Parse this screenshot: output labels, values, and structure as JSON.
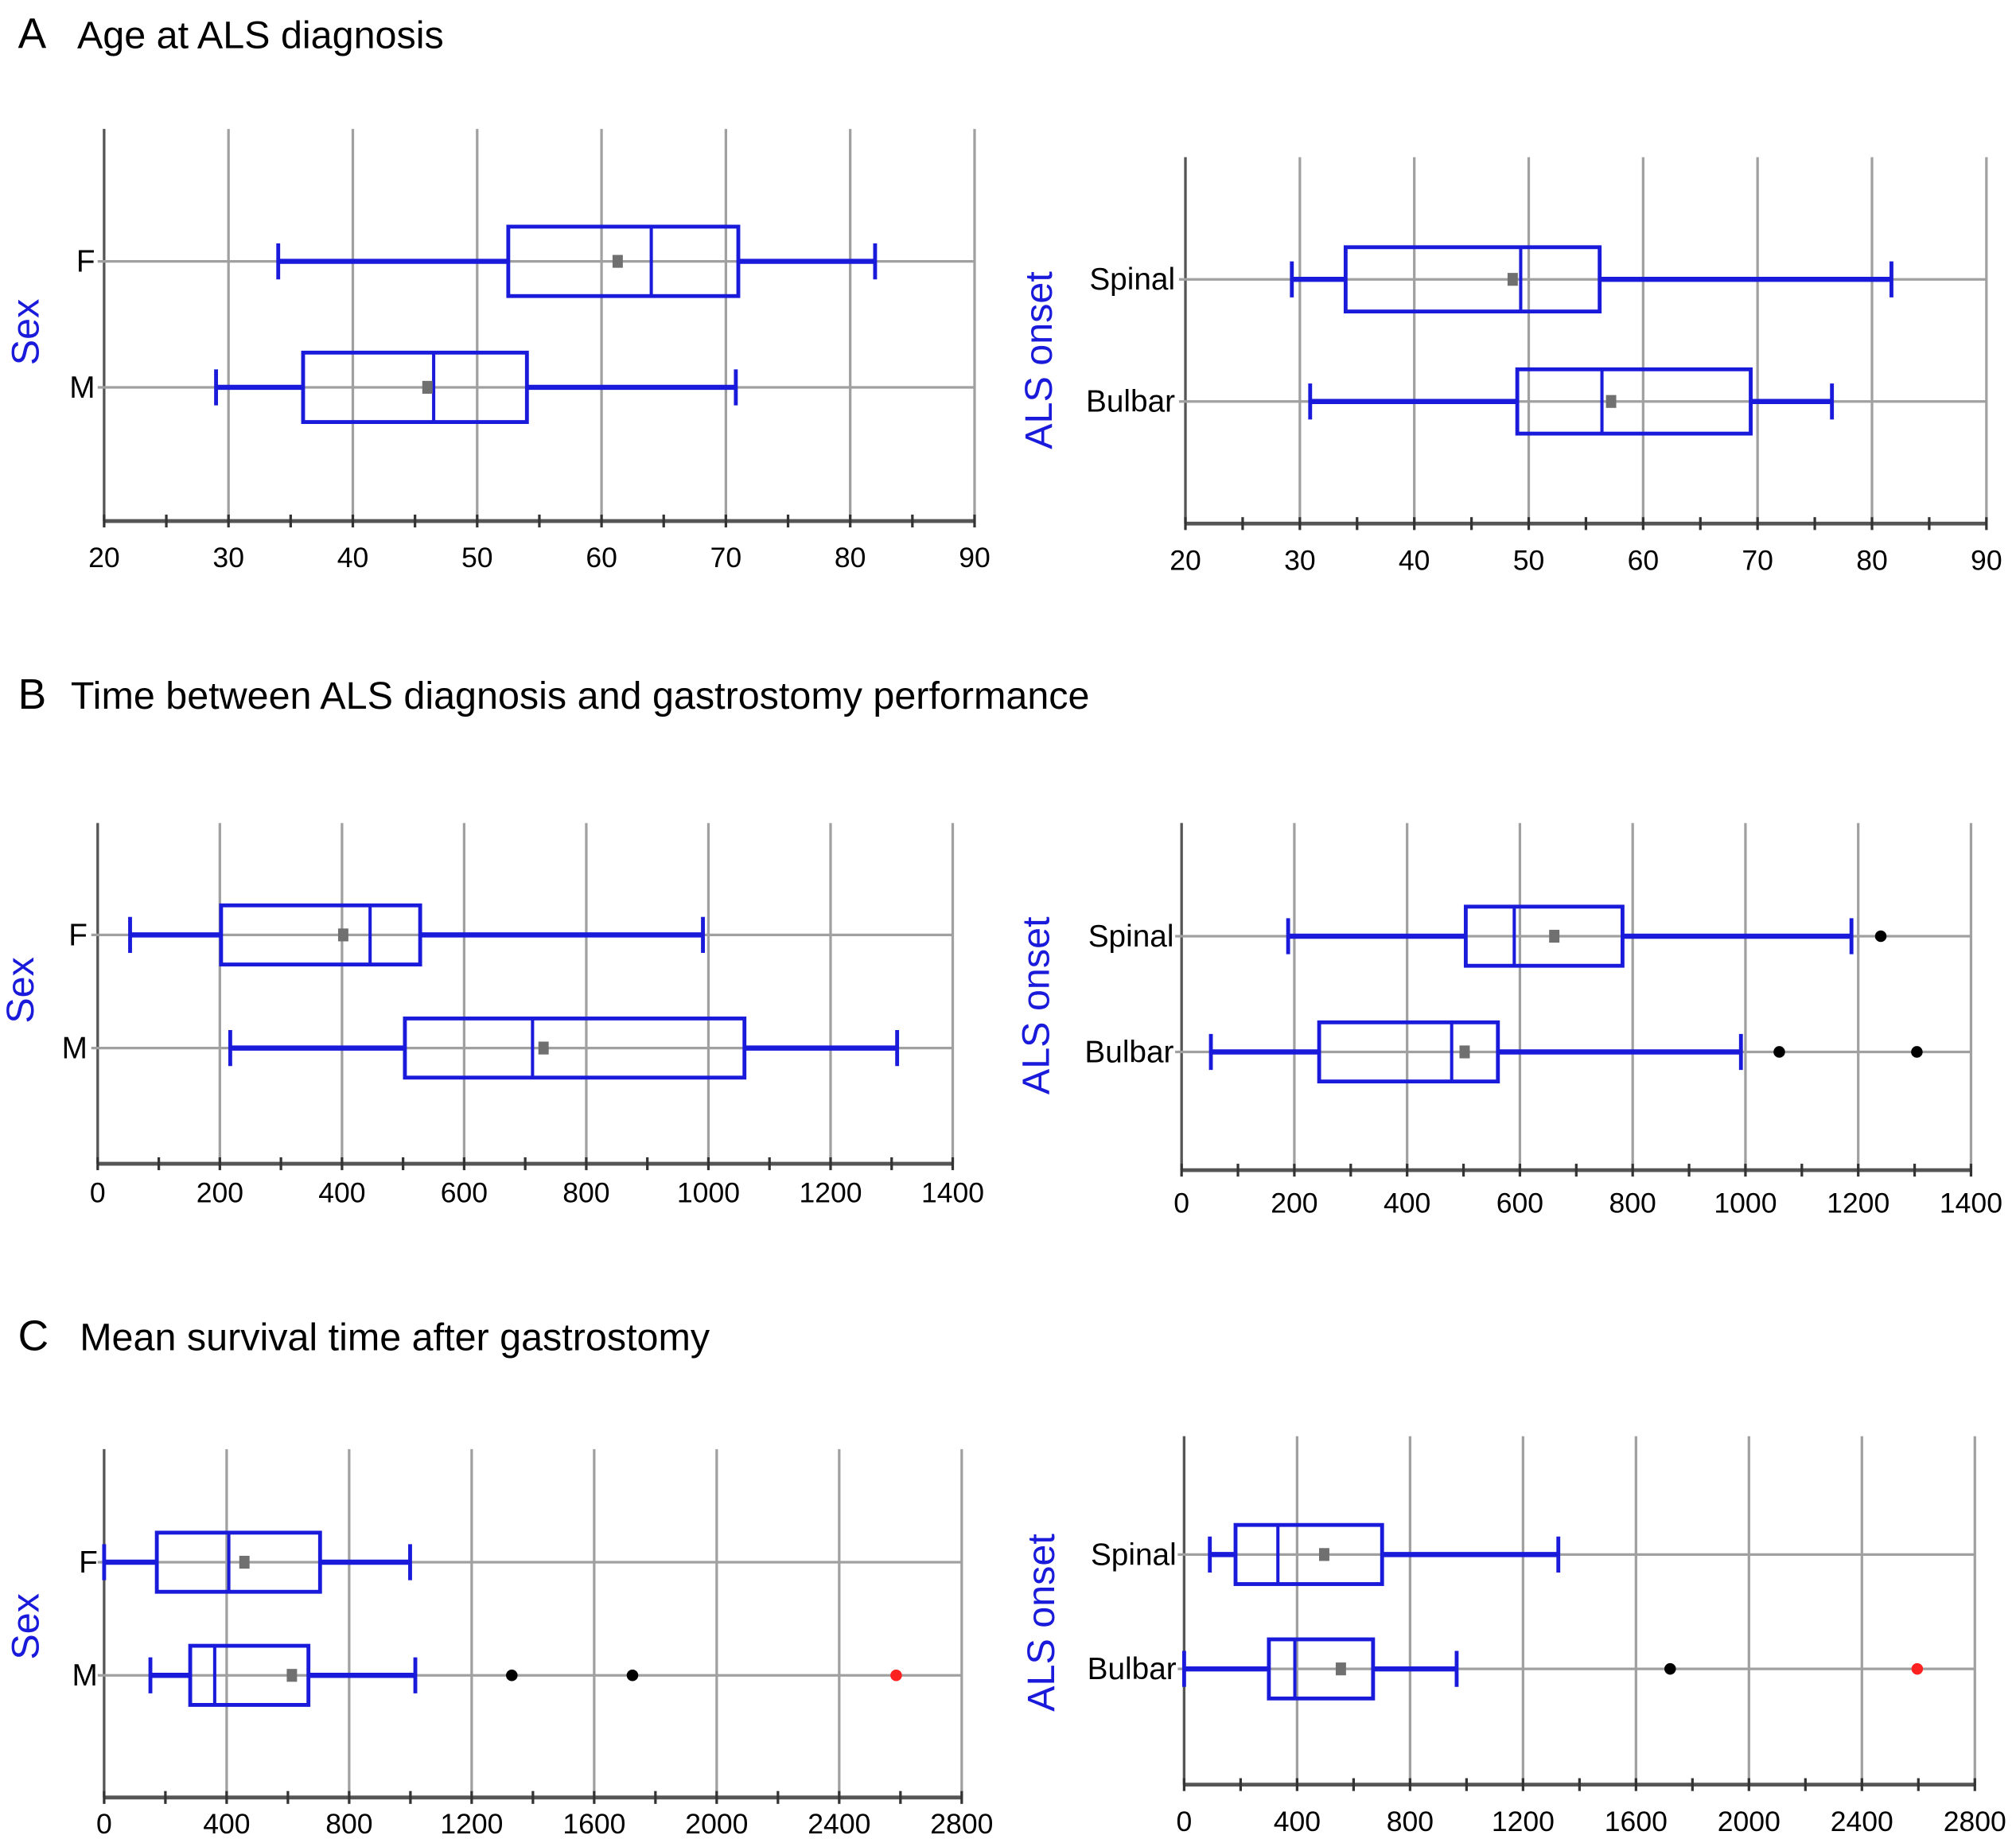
{
  "panels": [
    {
      "letter": "A",
      "title": "Age at ALS diagnosis"
    },
    {
      "letter": "B",
      "title": "Time between ALS diagnosis and gastrostomy performance"
    },
    {
      "letter": "C",
      "title": "Mean survival time after gastrostomy"
    }
  ],
  "colors": {
    "box": "#1a1adb",
    "mean": "#707070",
    "grid": "#a0a0a0",
    "outlier": "#000000",
    "extreme": "#ff2020",
    "ylabel": "#1a1adb"
  },
  "chart_data": [
    {
      "type": "boxplot",
      "panel": "A",
      "title": "Age at ALS diagnosis",
      "ylabel": "Sex",
      "xlim": [
        20,
        90
      ],
      "ticks": [
        "20",
        "30",
        "40",
        "50",
        "60",
        "70",
        "80",
        "90"
      ],
      "tick_values": [
        20,
        30,
        40,
        50,
        60,
        70,
        80,
        90
      ],
      "minor_step": 5,
      "groups": [
        {
          "name": "F",
          "whisker_low": 34,
          "q1": 52.5,
          "median": 64,
          "q3": 71,
          "whisker_high": 82,
          "mean": 61.3,
          "outliers": [],
          "extremes": []
        },
        {
          "name": "M",
          "whisker_low": 29,
          "q1": 36,
          "median": 46.5,
          "q3": 54,
          "whisker_high": 70.8,
          "mean": 46,
          "outliers": [],
          "extremes": []
        }
      ]
    },
    {
      "type": "boxplot",
      "panel": "A",
      "title": "Age at ALS diagnosis",
      "ylabel": "ALS onset",
      "xlim": [
        20,
        90
      ],
      "ticks": [
        "20",
        "30",
        "40",
        "50",
        "60",
        "70",
        "80",
        "90"
      ],
      "tick_values": [
        20,
        30,
        40,
        50,
        60,
        70,
        80,
        90
      ],
      "minor_step": 5,
      "groups": [
        {
          "name": "Spinal",
          "whisker_low": 29.3,
          "q1": 34,
          "median": 49.3,
          "q3": 56.2,
          "whisker_high": 81.7,
          "mean": 48.6,
          "outliers": [],
          "extremes": []
        },
        {
          "name": "Bulbar",
          "whisker_low": 30.9,
          "q1": 49,
          "median": 56.4,
          "q3": 69.4,
          "whisker_high": 76.5,
          "mean": 57.2,
          "outliers": [],
          "extremes": []
        }
      ]
    },
    {
      "type": "boxplot",
      "panel": "B",
      "title": "Time between ALS diagnosis and gastrostomy performance",
      "ylabel": "Sex",
      "xlim": [
        0,
        1400
      ],
      "ticks": [
        "0",
        "200",
        "400",
        "600",
        "800",
        "1000",
        "1200",
        "1400"
      ],
      "tick_values": [
        0,
        200,
        400,
        600,
        800,
        1000,
        1200,
        1400
      ],
      "minor_step": 100,
      "groups": [
        {
          "name": "F",
          "whisker_low": 53,
          "q1": 202,
          "median": 446,
          "q3": 528,
          "whisker_high": 991,
          "mean": 402,
          "outliers": [],
          "extremes": []
        },
        {
          "name": "M",
          "whisker_low": 217,
          "q1": 503,
          "median": 712,
          "q3": 1059,
          "whisker_high": 1309,
          "mean": 730,
          "outliers": [],
          "extremes": []
        }
      ]
    },
    {
      "type": "boxplot",
      "panel": "B",
      "title": "Time between ALS diagnosis and gastrostomy performance",
      "ylabel": "ALS onset",
      "xlim": [
        0,
        1400
      ],
      "ticks": [
        "0",
        "200",
        "400",
        "600",
        "800",
        "1000",
        "1200",
        "1400"
      ],
      "tick_values": [
        0,
        200,
        400,
        600,
        800,
        1000,
        1200,
        1400
      ],
      "minor_step": 100,
      "groups": [
        {
          "name": "Spinal",
          "whisker_low": 189,
          "q1": 504,
          "median": 590,
          "q3": 782,
          "whisker_high": 1188,
          "mean": 661,
          "outliers": [
            1240
          ],
          "extremes": []
        },
        {
          "name": "Bulbar",
          "whisker_low": 52,
          "q1": 244,
          "median": 479,
          "q3": 561,
          "whisker_high": 992,
          "mean": 502,
          "outliers": [
            1060,
            1304
          ],
          "extremes": []
        }
      ]
    },
    {
      "type": "boxplot",
      "panel": "C",
      "title": "Mean survival time after gastrostomy",
      "ylabel": "Sex",
      "xlim": [
        0,
        2800
      ],
      "ticks": [
        "0",
        "400",
        "800",
        "1200",
        "1600",
        "2000",
        "2400",
        "2800"
      ],
      "tick_values": [
        0,
        400,
        800,
        1200,
        1600,
        2000,
        2400,
        2800
      ],
      "minor_step": 200,
      "groups": [
        {
          "name": "F",
          "whisker_low": 0,
          "q1": 172,
          "median": 407,
          "q3": 705,
          "whisker_high": 999,
          "mean": 458,
          "outliers": [],
          "extremes": []
        },
        {
          "name": "M",
          "whisker_low": 151,
          "q1": 281,
          "median": 361,
          "q3": 667,
          "whisker_high": 1016,
          "mean": 613,
          "outliers": [
            1331,
            1725
          ],
          "extremes": [
            2586
          ]
        }
      ]
    },
    {
      "type": "boxplot",
      "panel": "C",
      "title": "Mean survival time after gastrostomy",
      "ylabel": "ALS onset",
      "xlim": [
        0,
        2800
      ],
      "ticks": [
        "0",
        "400",
        "800",
        "1200",
        "1600",
        "2000",
        "2400",
        "2800"
      ],
      "tick_values": [
        0,
        400,
        800,
        1200,
        1600,
        2000,
        2400,
        2800
      ],
      "minor_step": 200,
      "groups": [
        {
          "name": "Spinal",
          "whisker_low": 91,
          "q1": 182,
          "median": 332,
          "q3": 701,
          "whisker_high": 1325,
          "mean": 496,
          "outliers": [],
          "extremes": []
        },
        {
          "name": "Bulbar",
          "whisker_low": 0,
          "q1": 300,
          "median": 392,
          "q3": 669,
          "whisker_high": 965,
          "mean": 555,
          "outliers": [
            1721
          ],
          "extremes": [
            2596
          ]
        }
      ]
    }
  ]
}
